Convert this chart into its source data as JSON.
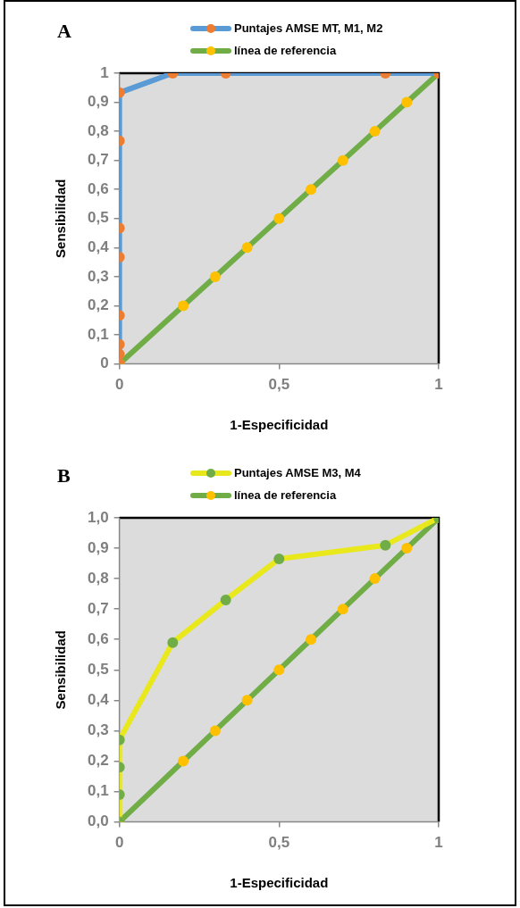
{
  "chart_data": [
    {
      "type": "line",
      "title": "A",
      "xlabel": "1-Especificidad",
      "ylabel": "Sensibilidad",
      "marker": "circle",
      "grid": false,
      "legend": "top",
      "xlim": [
        0,
        1
      ],
      "xticks": [
        {
          "value": 0,
          "label": "0"
        },
        {
          "value": 0.5,
          "label": "0,5"
        },
        {
          "value": 1,
          "label": "1"
        }
      ],
      "ylim": [
        0,
        1
      ],
      "yticks": [
        {
          "value": 0,
          "label": "0"
        },
        {
          "value": 0.1,
          "label": "0,1"
        },
        {
          "value": 0.2,
          "label": "0,2"
        },
        {
          "value": 0.3,
          "label": "0,3"
        },
        {
          "value": 0.4,
          "label": "0,4"
        },
        {
          "value": 0.5,
          "label": "0,5"
        },
        {
          "value": 0.6,
          "label": "0,6"
        },
        {
          "value": 0.7,
          "label": "0,7"
        },
        {
          "value": 0.8,
          "label": "0,8"
        },
        {
          "value": 0.9,
          "label": "0,9"
        },
        {
          "value": 1,
          "label": "1"
        }
      ],
      "series": [
        {
          "name": "Puntajes AMSE MT, M1, M2",
          "color": "#5b9bd5",
          "colors": [
            "#ed7d31",
            "#ed7d31",
            "#ed7d31",
            "#ed7d31",
            "#ed7d31",
            "#ed7d31",
            "#ed7d31",
            "#ed7d31",
            "#ed7d31",
            "#ed7d31",
            "#ed7d31",
            "#ed7d31"
          ],
          "x": [
            0,
            0,
            0,
            0,
            0,
            0,
            0,
            0,
            0.167,
            0.333,
            0.833,
            1
          ],
          "values": [
            0,
            0.033,
            0.067,
            0.167,
            0.367,
            0.467,
            0.767,
            0.933,
            1,
            1,
            1,
            1
          ]
        },
        {
          "name": "línea de referencia",
          "color": "#70ad47",
          "colors": [
            "#ffc000",
            "#ffc000",
            "#ffc000",
            "#ffc000",
            "#ffc000",
            "#ffc000",
            "#ffc000",
            "#ffc000",
            "#ffc000",
            "#ffc000"
          ],
          "x": [
            0,
            0.2,
            0.3,
            0.4,
            0.5,
            0.6,
            0.7,
            0.8,
            0.9,
            1
          ],
          "values": [
            0,
            0.2,
            0.3,
            0.4,
            0.5,
            0.6,
            0.7,
            0.8,
            0.9,
            1
          ]
        }
      ]
    },
    {
      "type": "line",
      "title": "B",
      "xlabel": "1-Especificidad",
      "ylabel": "Sensibilidad",
      "marker": "circle",
      "grid": false,
      "legend": "top",
      "xlim": [
        0,
        1
      ],
      "xticks": [
        {
          "value": 0,
          "label": "0"
        },
        {
          "value": 0.5,
          "label": "0,5"
        },
        {
          "value": 1,
          "label": "1"
        }
      ],
      "ylim": [
        0,
        1
      ],
      "yticks": [
        {
          "value": 0,
          "label": "0,0"
        },
        {
          "value": 0.1,
          "label": "0,1"
        },
        {
          "value": 0.2,
          "label": "0,2"
        },
        {
          "value": 0.3,
          "label": "0,3"
        },
        {
          "value": 0.4,
          "label": "0,4"
        },
        {
          "value": 0.5,
          "label": "0,5"
        },
        {
          "value": 0.6,
          "label": "0,6"
        },
        {
          "value": 0.7,
          "label": "0,7"
        },
        {
          "value": 0.8,
          "label": "0,8"
        },
        {
          "value": 0.9,
          "label": "0,9"
        },
        {
          "value": 1,
          "label": "1,0"
        }
      ],
      "series": [
        {
          "name": "Puntajes AMSE M3, M4",
          "color": "#e8e81c",
          "colors": [
            "#70ad47",
            "#70ad47",
            "#70ad47",
            "#70ad47",
            "#70ad47",
            "#70ad47",
            "#70ad47",
            "#70ad47",
            "#70ad47"
          ],
          "x": [
            0,
            0,
            0,
            0,
            0.167,
            0.333,
            0.5,
            0.833,
            1
          ],
          "values": [
            0,
            0.09,
            0.18,
            0.27,
            0.59,
            0.73,
            0.865,
            0.91,
            1
          ]
        },
        {
          "name": "línea de referencia",
          "color": "#70ad47",
          "colors": [
            "#ffc000",
            "#ffc000",
            "#ffc000",
            "#ffc000",
            "#ffc000",
            "#ffc000",
            "#ffc000",
            "#ffc000",
            "#ffc000",
            "#ffc000"
          ],
          "x": [
            0,
            0.2,
            0.3,
            0.4,
            0.5,
            0.6,
            0.7,
            0.8,
            0.9,
            1
          ],
          "values": [
            0,
            0.2,
            0.3,
            0.4,
            0.5,
            0.6,
            0.7,
            0.8,
            0.9,
            1
          ]
        }
      ]
    }
  ]
}
